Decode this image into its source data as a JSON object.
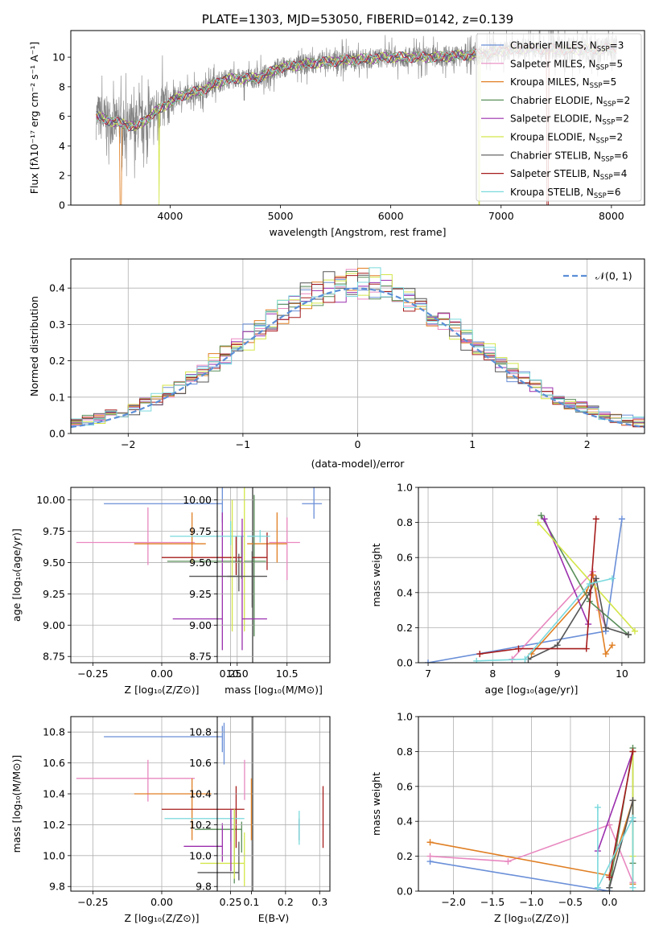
{
  "series_styles": [
    {
      "name": "Chabrier MILES",
      "n": "3",
      "color": "#6a8fd8"
    },
    {
      "name": "Salpeter MILES",
      "n": "5",
      "color": "#e888c0"
    },
    {
      "name": "Kroupa MILES",
      "n": "5",
      "color": "#e07f24"
    },
    {
      "name": "Chabrier ELODIE",
      "n": "2",
      "color": "#5a8f5a"
    },
    {
      "name": "Salpeter ELODIE",
      "n": "2",
      "color": "#9b2fae"
    },
    {
      "name": "Kroupa ELODIE",
      "n": "2",
      "color": "#d4e64a"
    },
    {
      "name": "Chabrier STELIB",
      "n": "6",
      "color": "#555555"
    },
    {
      "name": "Salpeter STELIB",
      "n": "4",
      "color": "#a61c1c"
    },
    {
      "name": "Kroupa STELIB",
      "n": "6",
      "color": "#7ad9dd"
    }
  ],
  "chart_data": [
    {
      "id": "spectrum",
      "type": "line",
      "title": "PLATE=1303, MJD=53050, FIBERID=0142, z=0.139",
      "xlabel": "wavelength [Angstrom, rest frame]",
      "ylabel": "Flux [fλ10⁻¹⁷ erg cm⁻² s⁻¹ A⁻¹]",
      "xlim": [
        3100,
        8300
      ],
      "ylim": [
        0,
        11.8
      ],
      "xticks": [
        4000,
        5000,
        6000,
        7000,
        8000
      ],
      "yticks": [
        0,
        2,
        4,
        6,
        8,
        10
      ],
      "legend_position": "upper-right",
      "data_series_color": "#808080",
      "model_points": {
        "x": [
          3330,
          3500,
          3700,
          3900,
          4100,
          4300,
          4500,
          4800,
          5000,
          5300,
          5600,
          6000,
          6400,
          6800,
          7200,
          7600,
          8050
        ],
        "y": [
          6.0,
          5.6,
          5.3,
          6.5,
          7.4,
          7.8,
          8.5,
          8.6,
          9.3,
          9.6,
          9.8,
          10.0,
          10.0,
          10.2,
          10.6,
          10.5,
          10.6
        ]
      }
    },
    {
      "id": "residuals",
      "type": "step",
      "xlabel": "(data-model)/error",
      "ylabel": "Normed distribution",
      "xlim": [
        -2.5,
        2.5
      ],
      "ylim": [
        0,
        0.48
      ],
      "xticks": [
        -2,
        -1,
        0,
        1,
        2
      ],
      "yticks": [
        0.0,
        0.1,
        0.2,
        0.3,
        0.4
      ],
      "legend": "𝒩(0, 1)",
      "gaussian_color": "#5b8ed6",
      "grid": true
    },
    {
      "id": "age-vs-Z",
      "type": "errorbar",
      "xlabel": "Z [log₁₀(Z/Z⊙)]",
      "ylabel": "age  [log₁₀(age/yr)]",
      "xlim": [
        -0.33,
        0.33
      ],
      "ylim": [
        8.7,
        10.1
      ],
      "xticks": [
        -0.25,
        0.0,
        0.25
      ],
      "xtick_labels": [
        "−0.25",
        "0.00",
        "0.25"
      ],
      "yticks": [
        8.75,
        9.0,
        9.25,
        9.5,
        9.75,
        10.0
      ],
      "ytick_labels": [
        "8.75",
        "9.00",
        "9.25",
        "9.50",
        "9.75",
        "10.00"
      ],
      "points": [
        {
          "x": 0.22,
          "y": 9.97,
          "xerr": [
            0.43,
            0
          ],
          "yerr": [
            0.15,
            0.17
          ],
          "s": 0
        },
        {
          "x": -0.05,
          "y": 9.66,
          "xerr": [
            0.26,
            0.17
          ],
          "yerr": [
            0.18,
            0.28
          ],
          "s": 1
        },
        {
          "x": 0.11,
          "y": 9.65,
          "xerr": [
            0.21,
            0.05
          ],
          "yerr": [
            0.15,
            0.25
          ],
          "s": 2
        },
        {
          "x": 0.29,
          "y": 9.51,
          "xerr": [
            0.27,
            0
          ],
          "yerr": [
            0.14,
            0.2
          ],
          "s": 3
        },
        {
          "x": 0.22,
          "y": 9.05,
          "xerr": [
            0.18,
            0
          ],
          "yerr": [
            0.25,
            0.85
          ],
          "s": 4
        },
        {
          "x": 0.3,
          "y": 9.5,
          "xerr": [
            0.03,
            0
          ],
          "yerr": [
            0.55,
            0.8
          ],
          "s": 5
        },
        {
          "x": 0.28,
          "y": 9.39,
          "xerr": [
            0.18,
            0
          ],
          "yerr": [
            0.12,
            0.18
          ],
          "s": 6
        },
        {
          "x": 0.27,
          "y": 9.54,
          "xerr": [
            0.27,
            0.02
          ],
          "yerr": [
            0.14,
            0.17
          ],
          "s": 7
        },
        {
          "x": 0.25,
          "y": 9.71,
          "xerr": [
            0.22,
            0.05
          ],
          "yerr": [
            0.07,
            0.12
          ],
          "s": 8
        }
      ]
    },
    {
      "id": "age-vs-mass",
      "type": "errorbar",
      "xlabel": "mass [log₁₀(M/M⊙)]",
      "ylabel": "",
      "xlim": [
        9.8,
        10.93
      ],
      "ylim": [
        8.7,
        10.1
      ],
      "xticks": [
        10.0,
        10.5
      ],
      "xtick_labels": [
        "10.0",
        "10.5"
      ],
      "yticks": [
        8.75,
        9.0,
        9.25,
        9.5,
        9.75,
        10.0
      ],
      "ytick_labels": [
        "8.75",
        "9.00",
        "9.25",
        "9.50",
        "9.75",
        "10.00"
      ],
      "points": [
        {
          "x": 10.77,
          "y": 9.97,
          "xerr": [
            0.12,
            0.08
          ],
          "yerr": [
            0.12,
            0.15
          ],
          "s": 0
        },
        {
          "x": 10.5,
          "y": 9.66,
          "xerr": [
            0.18,
            0.13
          ],
          "yerr": [
            0.3,
            0.2
          ],
          "s": 1
        },
        {
          "x": 10.4,
          "y": 9.65,
          "xerr": [
            0.3,
            0.1
          ],
          "yerr": [
            0.15,
            0.25
          ],
          "s": 2
        },
        {
          "x": 10.17,
          "y": 9.51,
          "xerr": [
            0.1,
            0.12
          ],
          "yerr": [
            0.6,
            0.53
          ],
          "s": 3
        },
        {
          "x": 10.05,
          "y": 9.05,
          "xerr": [
            0.0,
            0.25
          ],
          "yerr": [
            0.25,
            0.8
          ],
          "s": 4
        },
        {
          "x": 9.95,
          "y": 9.5,
          "xerr": [
            0.0,
            0.0
          ],
          "yerr": [
            0.55,
            0.5
          ],
          "s": 5
        },
        {
          "x": 10.15,
          "y": 9.39,
          "xerr": [
            0.25,
            0.15
          ],
          "yerr": [
            0.25,
            0.2
          ],
          "s": 6
        },
        {
          "x": 10.3,
          "y": 9.54,
          "xerr": [
            0.15,
            0.0
          ],
          "yerr": [
            0.1,
            0.2
          ],
          "s": 7
        },
        {
          "x": 10.23,
          "y": 9.71,
          "xerr": [
            0.13,
            0.1
          ],
          "yerr": [
            0.05,
            0.05
          ],
          "s": 8
        }
      ]
    },
    {
      "id": "weight-vs-age",
      "type": "line",
      "xlabel": "age  [log₁₀(age/yr)]",
      "ylabel": "mass weight",
      "xlim": [
        6.85,
        10.35
      ],
      "ylim": [
        0,
        1.0
      ],
      "xticks": [
        7,
        8,
        9,
        10
      ],
      "xtick_labels": [
        "7",
        "8",
        "9",
        "10"
      ],
      "yticks": [
        0.0,
        0.2,
        0.4,
        0.6,
        0.8,
        1.0
      ],
      "ytick_labels": [
        "0.0",
        "0.2",
        "0.4",
        "0.6",
        "0.8",
        "1.0"
      ],
      "series": [
        {
          "s": 0,
          "x": [
            7.0,
            9.75,
            10.0
          ],
          "y": [
            0.0,
            0.18,
            0.82
          ]
        },
        {
          "s": 1,
          "x": [
            8.3,
            9.55,
            9.65,
            9.75
          ],
          "y": [
            0.02,
            0.52,
            0.3,
            0.2
          ]
        },
        {
          "s": 2,
          "x": [
            8.6,
            9.45,
            9.55,
            9.75,
            9.85
          ],
          "y": [
            0.05,
            0.4,
            0.5,
            0.05,
            0.1
          ]
        },
        {
          "s": 3,
          "x": [
            8.75,
            9.5,
            10.1
          ],
          "y": [
            0.84,
            0.35,
            0.16
          ]
        },
        {
          "s": 4,
          "x": [
            8.8,
            9.48
          ],
          "y": [
            0.82,
            0.22
          ]
        },
        {
          "s": 5,
          "x": [
            8.7,
            10.2
          ],
          "y": [
            0.8,
            0.18
          ]
        },
        {
          "s": 6,
          "x": [
            8.55,
            9.0,
            9.5,
            9.6,
            9.75,
            10.1
          ],
          "y": [
            0.02,
            0.1,
            0.4,
            0.48,
            0.2,
            0.16
          ]
        },
        {
          "s": 7,
          "x": [
            7.8,
            8.4,
            9.45,
            9.6
          ],
          "y": [
            0.05,
            0.08,
            0.08,
            0.82
          ]
        },
        {
          "s": 8,
          "x": [
            7.75,
            8.5,
            9.5,
            9.85
          ],
          "y": [
            0.01,
            0.02,
            0.45,
            0.48
          ]
        }
      ]
    },
    {
      "id": "mass-vs-Z",
      "type": "errorbar",
      "xlabel": "Z [log₁₀(Z/Z⊙)]",
      "ylabel": "mass [log₁₀(M/M⊙)]",
      "xlim": [
        -0.33,
        0.33
      ],
      "ylim": [
        9.77,
        10.9
      ],
      "xticks": [
        -0.25,
        0.0,
        0.25
      ],
      "xtick_labels": [
        "−0.25",
        "0.00",
        "0.25"
      ],
      "yticks": [
        9.8,
        10.0,
        10.2,
        10.4,
        10.6,
        10.8
      ],
      "ytick_labels": [
        "9.8",
        "10.0",
        "10.2",
        "10.4",
        "10.6",
        "10.8"
      ],
      "points": [
        {
          "x": 0.22,
          "y": 10.77,
          "xerr": [
            0.43,
            0
          ],
          "yerr": [
            0.1,
            0.07
          ],
          "s": 0
        },
        {
          "x": -0.05,
          "y": 10.5,
          "xerr": [
            0.26,
            0.17
          ],
          "yerr": [
            0.15,
            0.12
          ],
          "s": 1
        },
        {
          "x": 0.11,
          "y": 10.4,
          "xerr": [
            0.21,
            0.07
          ],
          "yerr": [
            0.3,
            0.1
          ],
          "s": 2
        },
        {
          "x": 0.29,
          "y": 10.17,
          "xerr": [
            0.17,
            0
          ],
          "yerr": [
            0.15,
            0.05
          ],
          "s": 3
        },
        {
          "x": 0.22,
          "y": 10.06,
          "xerr": [
            0.14,
            0
          ],
          "yerr": [
            0.1,
            0.15
          ],
          "s": 4
        },
        {
          "x": 0.3,
          "y": 9.95,
          "xerr": [
            0.16,
            0
          ],
          "yerr": [
            0.15,
            0.2
          ],
          "s": 5
        },
        {
          "x": 0.28,
          "y": 9.89,
          "xerr": [
            0.15,
            0
          ],
          "yerr": [
            0.05,
            0.2
          ],
          "s": 6
        },
        {
          "x": 0.27,
          "y": 10.3,
          "xerr": [
            0.27,
            0.03
          ],
          "yerr": [
            0.25,
            0.15
          ],
          "s": 7
        },
        {
          "x": 0.25,
          "y": 10.24,
          "xerr": [
            0.24,
            0.05
          ],
          "yerr": [
            0.15,
            0.05
          ],
          "s": 8
        }
      ]
    },
    {
      "id": "mass-vs-EBV",
      "type": "errorbar",
      "xlabel": "E(B-V)",
      "ylabel": "",
      "xlim": [
        0.0,
        0.33
      ],
      "ylim": [
        9.77,
        10.9
      ],
      "xticks": [
        0.1,
        0.2,
        0.3
      ],
      "xtick_labels": [
        "0.1",
        "0.2",
        "0.3"
      ],
      "yticks": [
        9.8,
        10.0,
        10.2,
        10.4,
        10.6,
        10.8
      ],
      "ytick_labels": [
        "9.8",
        "10.0",
        "10.2",
        "10.4",
        "10.6",
        "10.8"
      ],
      "points": [
        {
          "x": 0.02,
          "y": 10.72,
          "xerr": [
            0,
            0
          ],
          "yerr": [
            0.13,
            0.14
          ],
          "s": 0
        },
        {
          "x": 0.08,
          "y": 10.5,
          "xerr": [
            0,
            0
          ],
          "yerr": [
            0.14,
            0.12
          ],
          "s": 1
        },
        {
          "x": 0.1,
          "y": 10.4,
          "xerr": [
            0,
            0
          ],
          "yerr": [
            0.3,
            0.1
          ],
          "s": 2
        },
        {
          "x": 0.05,
          "y": 10.0,
          "xerr": [
            0,
            0
          ],
          "yerr": [
            0.18,
            0.3
          ],
          "s": 3
        },
        {
          "x": 0.04,
          "y": 10.05,
          "xerr": [
            0,
            0
          ],
          "yerr": [
            0.15,
            0.25
          ],
          "s": 4
        },
        {
          "x": 0.05,
          "y": 10.0,
          "xerr": [
            0,
            0
          ],
          "yerr": [
            0.15,
            0.3
          ],
          "s": 5
        },
        {
          "x": 0.24,
          "y": 10.17,
          "xerr": [
            0,
            0
          ],
          "yerr": [
            0.07,
            0.07
          ],
          "s": 6
        },
        {
          "x": 0.31,
          "y": 10.25,
          "xerr": [
            0,
            0
          ],
          "yerr": [
            0.2,
            0.2
          ],
          "s": 7
        },
        {
          "x": 0.24,
          "y": 10.17,
          "xerr": [
            0,
            0
          ],
          "yerr": [
            0.1,
            0.12
          ],
          "s": 8
        }
      ]
    },
    {
      "id": "weight-vs-Z",
      "type": "line",
      "xlabel": "Z [log₁₀(Z/Z⊙)]",
      "ylabel": "mass weight",
      "xlim": [
        -2.45,
        0.45
      ],
      "ylim": [
        0,
        1.0
      ],
      "xticks": [
        -2.0,
        -1.5,
        -1.0,
        -0.5,
        0.0
      ],
      "xtick_labels": [
        "−2.0",
        "−1.5",
        "−1.0",
        "−0.5",
        "0.0"
      ],
      "yticks": [
        0.0,
        0.2,
        0.4,
        0.6,
        0.8,
        1.0
      ],
      "ytick_labels": [
        "0.0",
        "0.2",
        "0.4",
        "0.6",
        "0.8",
        "1.0"
      ],
      "series": [
        {
          "s": 0,
          "x": [
            -2.3,
            0.0,
            0.0
          ],
          "y": [
            0.17,
            0.0,
            0.02
          ]
        },
        {
          "s": 1,
          "x": [
            -2.3,
            -1.3,
            0.0,
            0.3
          ],
          "y": [
            0.2,
            0.17,
            0.38,
            0.05
          ]
        },
        {
          "s": 2,
          "x": [
            -2.3,
            0.0,
            0.3,
            0.3
          ],
          "y": [
            0.28,
            0.09,
            0.52,
            0.04
          ]
        },
        {
          "s": 3,
          "x": [
            0.0,
            0.3,
            0.3
          ],
          "y": [
            0.02,
            0.82,
            0.16
          ]
        },
        {
          "s": 4,
          "x": [
            -0.15,
            0.3
          ],
          "y": [
            0.23,
            0.8
          ]
        },
        {
          "s": 5,
          "x": [
            0.3,
            0.3
          ],
          "y": [
            0.8,
            0.2
          ]
        },
        {
          "s": 6,
          "x": [
            0.0,
            0.3,
            0.3
          ],
          "y": [
            0.02,
            0.52,
            0.4
          ]
        },
        {
          "s": 7,
          "x": [
            0.0,
            0.3
          ],
          "y": [
            0.08,
            0.8
          ]
        },
        {
          "s": 8,
          "x": [
            -0.15,
            -0.15,
            0.3,
            0.3
          ],
          "y": [
            0.48,
            0.02,
            0.42,
            0.02
          ]
        }
      ]
    }
  ]
}
